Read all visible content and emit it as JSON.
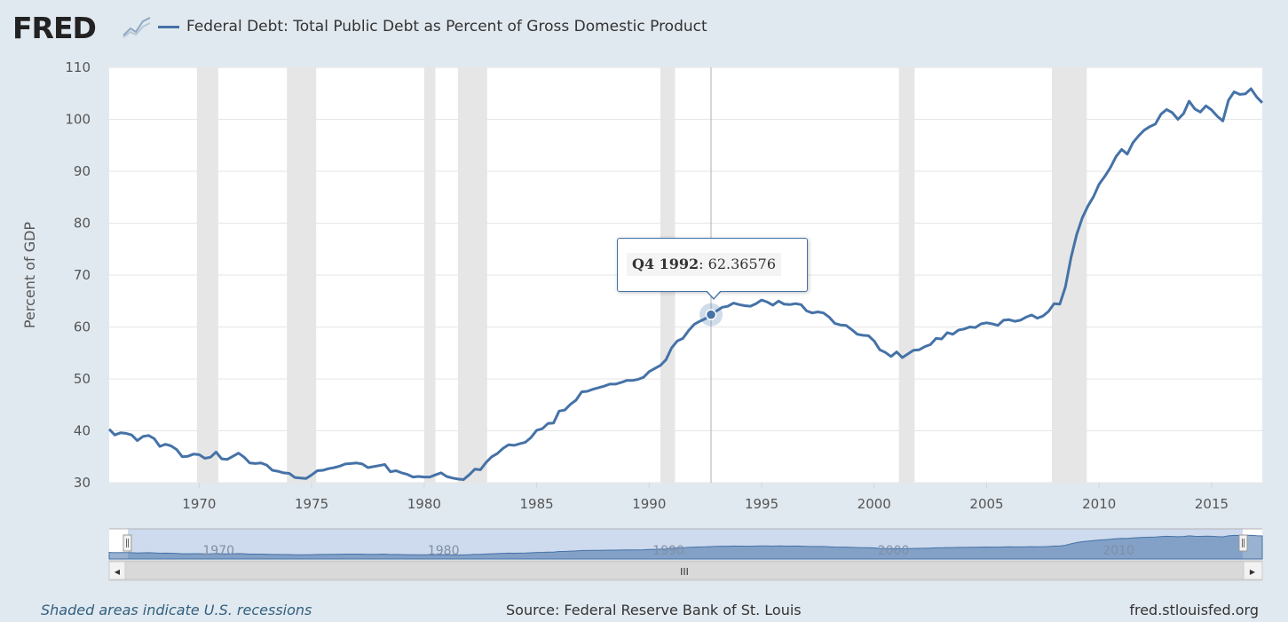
{
  "header": {
    "logo_text": "FRED",
    "logo_icon": "line-chart-icon",
    "legend_label": "Federal Debt: Total Public Debt as Percent of Gross Domestic Product",
    "series_color": "#4572a7"
  },
  "tooltip": {
    "period": "Q4 1992",
    "value_text": ": 62.36576"
  },
  "footer": {
    "left": "Shaded areas indicate U.S. recessions",
    "center": "Source: Federal Reserve Bank of St. Louis",
    "right": "fred.stlouisfed.org"
  },
  "navigator": {
    "tick_labels": [
      "1970",
      "1980",
      "1990",
      "2000",
      "2010"
    ],
    "grip_symbol": "III",
    "left_arrow": "◀",
    "right_arrow": "▶"
  },
  "chart_data": {
    "type": "line",
    "ylabel": "Percent of GDP",
    "ylim": [
      30,
      110
    ],
    "xlim": [
      1966.0,
      2017.25
    ],
    "yticks": [
      30,
      40,
      50,
      60,
      70,
      80,
      90,
      100,
      110
    ],
    "xticks": [
      1970,
      1975,
      1980,
      1985,
      1990,
      1995,
      2000,
      2005,
      2010,
      2015
    ],
    "grid": true,
    "recessions": [
      [
        1969.9,
        1970.85
      ],
      [
        1973.9,
        1975.2
      ],
      [
        1980.0,
        1980.5
      ],
      [
        1981.5,
        1982.8
      ],
      [
        1990.5,
        1991.15
      ],
      [
        2001.1,
        2001.8
      ],
      [
        2007.9,
        2009.45
      ]
    ],
    "highlight": {
      "x": 1992.75,
      "y": 62.36576
    },
    "series": [
      {
        "x": [
          1966.0,
          1966.25,
          1966.5,
          1966.75,
          1967.0,
          1967.25,
          1967.5,
          1967.75,
          1968.0,
          1968.25,
          1968.5,
          1968.75,
          1969.0,
          1969.25,
          1969.5,
          1969.75,
          1970.0,
          1970.25,
          1970.5,
          1970.75,
          1971.0,
          1971.25,
          1971.5,
          1971.75,
          1972.0,
          1972.25,
          1972.5,
          1972.75,
          1973.0,
          1973.25,
          1973.5,
          1973.75,
          1974.0,
          1974.25,
          1974.5,
          1974.75,
          1975.0,
          1975.25,
          1975.5,
          1975.75,
          1976.0,
          1976.25,
          1976.5,
          1976.75,
          1977.0,
          1977.25,
          1977.5,
          1977.75,
          1978.0,
          1978.25,
          1978.5,
          1978.75,
          1979.0,
          1979.25,
          1979.5,
          1979.75,
          1980.0,
          1980.25,
          1980.5,
          1980.75,
          1981.0,
          1981.25,
          1981.5,
          1981.75,
          1982.0,
          1982.25,
          1982.5,
          1982.75,
          1983.0,
          1983.25,
          1983.5,
          1983.75,
          1984.0,
          1984.25,
          1984.5,
          1984.75,
          1985.0,
          1985.25,
          1985.5,
          1985.75,
          1986.0,
          1986.25,
          1986.5,
          1986.75,
          1987.0,
          1987.25,
          1987.5,
          1987.75,
          1988.0,
          1988.25,
          1988.5,
          1988.75,
          1989.0,
          1989.25,
          1989.5,
          1989.75,
          1990.0,
          1990.25,
          1990.5,
          1990.75,
          1991.0,
          1991.25,
          1991.5,
          1991.75,
          1992.0,
          1992.25,
          1992.5,
          1992.75,
          1993.0,
          1993.25,
          1993.5,
          1993.75,
          1994.0,
          1994.25,
          1994.5,
          1994.75,
          1995.0,
          1995.25,
          1995.5,
          1995.75,
          1996.0,
          1996.25,
          1996.5,
          1996.75,
          1997.0,
          1997.25,
          1997.5,
          1997.75,
          1998.0,
          1998.25,
          1998.5,
          1998.75,
          1999.0,
          1999.25,
          1999.5,
          1999.75,
          2000.0,
          2000.25,
          2000.5,
          2000.75,
          2001.0,
          2001.25,
          2001.5,
          2001.75,
          2002.0,
          2002.25,
          2002.5,
          2002.75,
          2003.0,
          2003.25,
          2003.5,
          2003.75,
          2004.0,
          2004.25,
          2004.5,
          2004.75,
          2005.0,
          2005.25,
          2005.5,
          2005.75,
          2006.0,
          2006.25,
          2006.5,
          2006.75,
          2007.0,
          2007.25,
          2007.5,
          2007.75,
          2008.0,
          2008.25,
          2008.5,
          2008.75,
          2009.0,
          2009.25,
          2009.5,
          2009.75,
          2010.0,
          2010.25,
          2010.5,
          2010.75,
          2011.0,
          2011.25,
          2011.5,
          2011.75,
          2012.0,
          2012.25,
          2012.5,
          2012.75,
          2013.0,
          2013.25,
          2013.5,
          2013.75,
          2014.0,
          2014.25,
          2014.5,
          2014.75,
          2015.0,
          2015.25,
          2015.5,
          2015.75,
          2016.0,
          2016.25,
          2016.5,
          2016.75,
          2017.0,
          2017.25
        ],
        "values": [
          40.3,
          39.2,
          39.6,
          39.5,
          39.2,
          38.1,
          38.9,
          39.1,
          38.5,
          37.0,
          37.4,
          37.1,
          36.4,
          35.0,
          35.1,
          35.5,
          35.4,
          34.7,
          34.9,
          35.9,
          34.6,
          34.5,
          35.1,
          35.7,
          34.9,
          33.8,
          33.7,
          33.8,
          33.4,
          32.4,
          32.2,
          31.9,
          31.8,
          31.0,
          30.9,
          30.8,
          31.5,
          32.3,
          32.4,
          32.7,
          32.9,
          33.2,
          33.6,
          33.7,
          33.8,
          33.6,
          32.9,
          33.1,
          33.3,
          33.5,
          32.1,
          32.3,
          31.9,
          31.6,
          31.1,
          31.2,
          31.1,
          31.1,
          31.5,
          31.9,
          31.2,
          30.9,
          30.7,
          30.6,
          31.5,
          32.6,
          32.5,
          33.9,
          35.0,
          35.6,
          36.6,
          37.3,
          37.2,
          37.5,
          37.8,
          38.7,
          40.1,
          40.4,
          41.4,
          41.5,
          43.8,
          44.0,
          45.1,
          45.9,
          47.5,
          47.6,
          48.0,
          48.3,
          48.6,
          49.0,
          49.0,
          49.3,
          49.7,
          49.7,
          49.9,
          50.3,
          51.4,
          52.0,
          52.6,
          53.7,
          56.0,
          57.3,
          57.8,
          59.3,
          60.5,
          61.1,
          61.6,
          62.4,
          63.1,
          63.8,
          64.0,
          64.6,
          64.3,
          64.1,
          64.0,
          64.5,
          65.2,
          64.8,
          64.2,
          65.0,
          64.4,
          64.3,
          64.5,
          64.3,
          63.1,
          62.7,
          62.9,
          62.7,
          61.9,
          60.7,
          60.4,
          60.3,
          59.5,
          58.6,
          58.4,
          58.3,
          57.3,
          55.6,
          55.1,
          54.3,
          55.2,
          54.1,
          54.8,
          55.5,
          55.6,
          56.2,
          56.6,
          57.8,
          57.7,
          58.9,
          58.6,
          59.4,
          59.6,
          60.0,
          59.9,
          60.6,
          60.8,
          60.6,
          60.3,
          61.3,
          61.4,
          61.1,
          61.3,
          61.9,
          62.3,
          61.7,
          62.1,
          63.0,
          64.5,
          64.4,
          67.7,
          73.4,
          77.8,
          81.0,
          83.3,
          85.1,
          87.5,
          89.0,
          90.7,
          92.8,
          94.2,
          93.3,
          95.5,
          96.8,
          97.9,
          98.6,
          99.1,
          101.0,
          101.9,
          101.3,
          100.0,
          101.1,
          103.5,
          102.0,
          101.4,
          102.6,
          101.8,
          100.6,
          99.7,
          103.7,
          105.3,
          104.8,
          104.9,
          105.9,
          104.3,
          103.2
        ]
      }
    ]
  }
}
